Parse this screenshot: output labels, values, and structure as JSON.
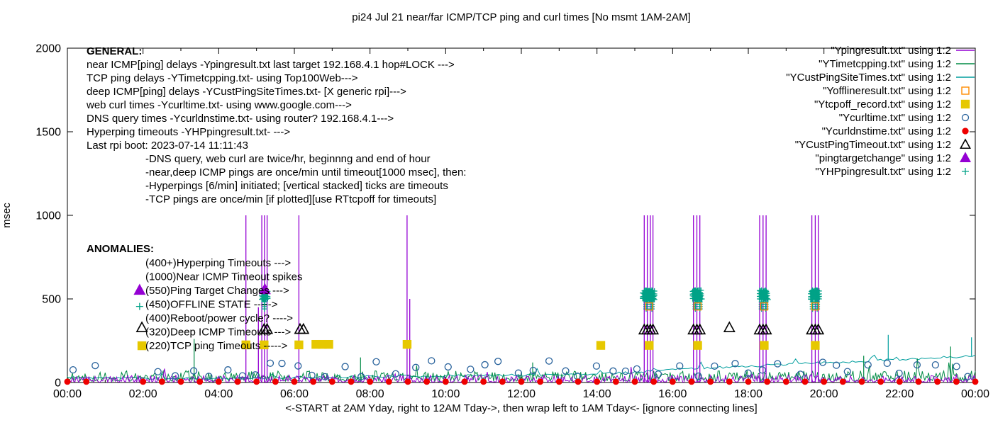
{
  "chart_data": {
    "type": "line",
    "title": "pi24 Jul 21  near/far ICMP/TCP ping and curl times [No msmt 1AM-2AM]",
    "xlabel": "<-START at 2AM Yday, right to 12AM Tday->, then wrap left to 1AM Tday<- [ignore connecting lines]",
    "ylabel": "msec",
    "x_range_hours": [
      0,
      24
    ],
    "x_ticks": [
      "00:00",
      "02:00",
      "04:00",
      "06:00",
      "08:00",
      "10:00",
      "12:00",
      "14:00",
      "16:00",
      "18:00",
      "20:00",
      "22:00",
      "00:00"
    ],
    "y_range_msec": [
      0,
      2000
    ],
    "y_ticks": [
      0,
      500,
      1000,
      1500,
      2000
    ],
    "no_measurement_window": "1AM-2AM",
    "legend": [
      {
        "label": "\"Ypingresult.txt\" using 1:2",
        "glyph": "line",
        "color": "#9400d3"
      },
      {
        "label": "\"YTimetcpping.txt\" using 1:2",
        "glyph": "line",
        "color": "#008b45"
      },
      {
        "label": "\"YCustPingSiteTimes.txt\" using 1:2",
        "glyph": "line",
        "color": "#009e9e"
      },
      {
        "label": "\"Yofflineresult.txt\" using 1:2",
        "glyph": "open-square",
        "color": "#ff8c00"
      },
      {
        "label": "\"Ytcpoff_record.txt\" using 1:2",
        "glyph": "filled-square",
        "color": "#e6c800"
      },
      {
        "label": "\"Ycurltime.txt\" using 1:2",
        "glyph": "open-circle",
        "color": "#27619b"
      },
      {
        "label": "\"Ycurldnstime.txt\" using 1:2",
        "glyph": "filled-circle",
        "color": "#ee0000"
      },
      {
        "label": "\"YCustPingTimeout.txt\" using 1:2",
        "glyph": "open-triangle",
        "color": "#000000"
      },
      {
        "label": "\"pingtargetchange\" using 1:2",
        "glyph": "filled-triangle",
        "color": "#9400d3"
      },
      {
        "label": "\"YHPpingresult.txt\" using 1:2",
        "glyph": "plus",
        "color": "#00a287"
      }
    ],
    "series": {
      "near_icmp_line": {
        "file": "Ypingresult.txt",
        "color": "#9400d3",
        "baseline_noise_ms": [
          2,
          45
        ],
        "timeout_ms": 1000,
        "timeout_spike_hours": [
          4.72,
          5.14,
          5.21,
          5.28,
          6.12,
          8.98,
          15.25,
          15.33,
          15.41,
          15.48,
          16.55,
          16.64,
          16.72,
          18.3,
          18.39,
          18.47,
          19.68,
          19.77,
          19.85
        ],
        "partial_spikes": [
          [
            5.05,
            450
          ],
          [
            9.05,
            500
          ]
        ]
      },
      "tcp_ping_line": {
        "file": "YTimetcpping.txt",
        "color": "#008b45",
        "baseline_noise_ms": [
          8,
          70
        ],
        "spikes": [
          [
            3.35,
            260
          ],
          [
            7.75,
            150
          ],
          [
            12.3,
            120
          ],
          [
            21.05,
            160
          ],
          [
            23.35,
            215
          ]
        ]
      },
      "deep_ping_line": {
        "file": "YCustPingSiteTimes.txt",
        "color": "#009e9e",
        "trend_points": [
          [
            0,
            30
          ],
          [
            2,
            26
          ],
          [
            4,
            24
          ],
          [
            6,
            30
          ],
          [
            8,
            36
          ],
          [
            10,
            40
          ],
          [
            12,
            44
          ],
          [
            14,
            52
          ],
          [
            15,
            62
          ],
          [
            16,
            78
          ],
          [
            17,
            88
          ],
          [
            18,
            98
          ],
          [
            19,
            108
          ],
          [
            20,
            118
          ],
          [
            21,
            126
          ],
          [
            22,
            138
          ],
          [
            23,
            148
          ],
          [
            24,
            160
          ]
        ],
        "spikes": [
          [
            21.7,
            285
          ],
          [
            23.9,
            270
          ]
        ]
      },
      "offline_state": {
        "file": "Yofflineresult.txt",
        "color": "#ff8c00",
        "points": [
          [
            15.38,
            455
          ],
          [
            16.66,
            455
          ],
          [
            18.42,
            455
          ],
          [
            19.77,
            455
          ]
        ]
      },
      "tcp_ping_timeouts": {
        "file": "Ytcpoff_record.txt",
        "color": "#e6c800",
        "points": [
          [
            1.97,
            220
          ],
          [
            4.72,
            225
          ],
          [
            5.2,
            225
          ],
          [
            6.12,
            225
          ],
          [
            6.57,
            228
          ],
          [
            6.74,
            228
          ],
          [
            6.91,
            228
          ],
          [
            8.98,
            228
          ],
          [
            14.1,
            222
          ],
          [
            15.38,
            222
          ],
          [
            16.66,
            222
          ],
          [
            18.42,
            222
          ],
          [
            19.77,
            222
          ]
        ]
      },
      "web_curl": {
        "file": "Ycurltime.txt",
        "color": "#27619b",
        "scatter_ms": [
          32,
          130
        ],
        "cadence": "twice per hour"
      },
      "dns_query": {
        "file": "Ycurldnstime.txt",
        "color": "#ee0000",
        "value_ms": 5,
        "interval_hours": 0.5
      },
      "deep_icmp_timeouts": {
        "file": "YCustPingTimeout.txt",
        "color": "#000000",
        "points": [
          [
            1.97,
            328
          ],
          [
            5.2,
            318
          ],
          [
            5.28,
            318
          ],
          [
            6.15,
            318
          ],
          [
            6.24,
            318
          ],
          [
            15.25,
            315
          ],
          [
            15.33,
            315
          ],
          [
            15.41,
            315
          ],
          [
            15.48,
            315
          ],
          [
            16.55,
            315
          ],
          [
            16.64,
            315
          ],
          [
            16.72,
            315
          ],
          [
            17.5,
            328
          ],
          [
            18.3,
            315
          ],
          [
            18.39,
            315
          ],
          [
            18.47,
            315
          ],
          [
            19.68,
            315
          ],
          [
            19.77,
            315
          ],
          [
            19.85,
            315
          ]
        ]
      },
      "ping_target_change": {
        "file": "pingtargetchange",
        "color": "#9400d3",
        "points": [
          [
            1.91,
            552
          ],
          [
            5.22,
            556
          ]
        ]
      },
      "hyperping_timeouts": {
        "file": "YHPpingresult.txt",
        "color": "#00a287",
        "sample_point": [
          1.91,
          455
        ],
        "band_rows_ms": [
          500,
          516,
          532,
          548
        ],
        "clusters": [
          {
            "center": 5.22,
            "halfwidth": 0.08
          },
          {
            "center": 15.37,
            "halfwidth": 0.16
          },
          {
            "center": 16.66,
            "halfwidth": 0.13
          },
          {
            "center": 18.42,
            "halfwidth": 0.12
          },
          {
            "center": 19.77,
            "halfwidth": 0.12
          }
        ],
        "stack_hours": [
          5.21,
          15.3,
          15.45,
          16.6,
          16.72,
          18.35,
          18.46,
          19.7,
          19.82
        ],
        "stack_range_ms": [
          440,
          565
        ]
      }
    }
  },
  "annotations": {
    "general": {
      "header": "GENERAL:",
      "lines": [
        "near ICMP[ping] delays -Ypingresult.txt last target 192.168.4.1 hop#LOCK --->",
        "TCP ping delays -YTimetcpping.txt- using Top100Web--->",
        "deep ICMP[ping] delays -YCustPingSiteTimes.txt- [X generic rpi]--->",
        "web curl times -Ycurltime.txt- using www.google.com--->",
        "DNS query times -Ycurldnstime.txt- using router? 192.168.4.1--->",
        "Hyperping timeouts -YHPpingresult.txt- --->",
        "Last rpi boot: 2023-07-14 11:11:43"
      ],
      "notes": [
        "-DNS query, web curl are twice/hr, beginnng and end of hour",
        "-near,deep ICMP pings are once/min until timeout[1000 msec], then:",
        "-Hyperpings [6/min] initiated; [vertical stacked] ticks are timeouts",
        "-TCP pings are once/min [if plotted][use RTtcpoff for timeouts]"
      ]
    },
    "anomalies": {
      "header": "ANOMALIES:",
      "items": [
        "(400+)Hyperping Timeouts --->",
        "(1000)Near ICMP Timeout spikes",
        "(550)Ping Target Changes --->",
        "(450)OFFLINE STATE ----->",
        "(400)Reboot/power cycle? ---->",
        "(320)Deep ICMP Timeouts --->",
        "(220)TCP ping Timeouts ----->"
      ]
    }
  }
}
